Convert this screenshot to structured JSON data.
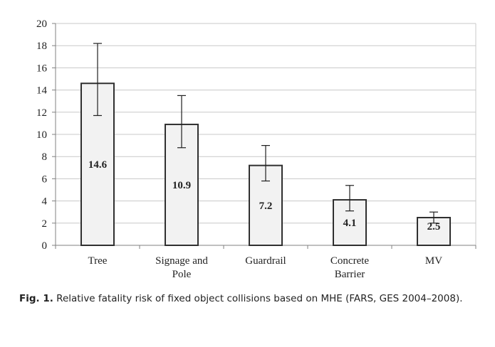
{
  "chart_data": {
    "type": "bar",
    "categories": [
      "Tree",
      "Signage and Pole",
      "Guardrail",
      "Concrete Barrier",
      "MV"
    ],
    "category_lines": [
      [
        "Tree"
      ],
      [
        "Signage and",
        "Pole"
      ],
      [
        "Guardrail"
      ],
      [
        "Concrete",
        "Barrier"
      ],
      [
        "MV"
      ]
    ],
    "values": [
      14.6,
      10.9,
      7.2,
      4.1,
      2.5
    ],
    "data_labels": [
      "14.6",
      "10.9",
      "7.2",
      "4.1",
      "2.5"
    ],
    "error_upper": [
      18.2,
      13.5,
      9.0,
      5.4,
      3.0
    ],
    "error_lower": [
      11.7,
      8.8,
      5.8,
      3.1,
      2.0
    ],
    "ylim": [
      0,
      20
    ],
    "yticks": [
      0,
      2,
      4,
      6,
      8,
      10,
      12,
      14,
      16,
      18,
      20
    ],
    "grid": true,
    "legend": "none",
    "colors": {
      "bar_fill": "#f2f2f2",
      "bar_stroke": "#303030",
      "grid": "#c8c8c8",
      "axis": "#808080",
      "error": "#202020"
    }
  },
  "caption": {
    "label": "Fig. 1.",
    "text": " Relative fatality risk of fixed object collisions based on MHE (FARS, GES 2004–2008)."
  }
}
